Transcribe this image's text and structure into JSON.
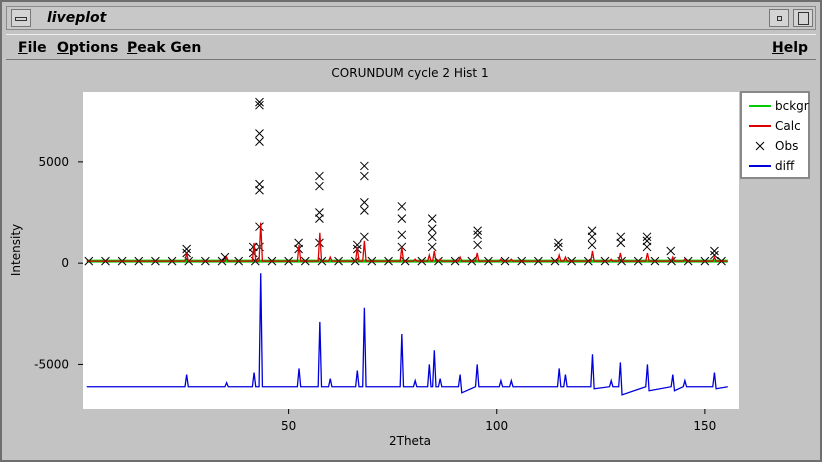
{
  "window": {
    "title": "liveplot"
  },
  "menu": {
    "left": [
      "File",
      "Options",
      "Peak Gen"
    ],
    "right": [
      "Help"
    ]
  },
  "chart_data": {
    "type": "line",
    "title": "CORUNDUM cycle 2 Hist 1",
    "x_label": "2Theta",
    "y_label": "Intensity",
    "xlim": [
      0.6,
      158.2
    ],
    "ylim": [
      -7200,
      8450
    ],
    "xticks": [
      50,
      100,
      150
    ],
    "yticks": [
      -5000,
      0,
      5000
    ],
    "legend": "right",
    "series": [
      {
        "name": "bckgr",
        "color": "#00cc00",
        "x": [
          1.5,
          155.5
        ],
        "values": [
          100,
          100
        ]
      },
      {
        "name": "Calc",
        "color": "#dd0000",
        "x": [
          1.5,
          25.1,
          25.5,
          25.9,
          34.7,
          35.1,
          35.5,
          41.3,
          41.7,
          42.1,
          42.9,
          43.3,
          43.7,
          52.1,
          52.5,
          52.9,
          57.1,
          57.5,
          57.9,
          59.6,
          60,
          60.4,
          66.1,
          66.5,
          66.9,
          67.8,
          68.2,
          68.6,
          76.8,
          77.2,
          77.6,
          80,
          80.4,
          80.8,
          83.4,
          83.8,
          84.2,
          84.6,
          85,
          85.4,
          86,
          86.4,
          86.8,
          90.8,
          91.2,
          91.6,
          94.9,
          95.3,
          95.7,
          100.6,
          101,
          101.4,
          103.1,
          103.5,
          103.9,
          114.6,
          115,
          115.4,
          116.1,
          116.5,
          116.9,
          122.6,
          123,
          123.4,
          127.1,
          127.5,
          127.9,
          129.3,
          129.7,
          130.1,
          135.8,
          136.2,
          136.6,
          141.9,
          142.3,
          142.7,
          144.8,
          145.2,
          145.6,
          151.9,
          152.3,
          152.7,
          155.5
        ],
        "values": [
          100,
          100,
          500,
          100,
          100,
          300,
          100,
          100,
          1000,
          100,
          100,
          2000,
          100,
          100,
          900,
          100,
          100,
          1500,
          100,
          100,
          300,
          100,
          100,
          800,
          100,
          100,
          1100,
          100,
          100,
          800,
          100,
          100,
          200,
          100,
          100,
          400,
          100,
          100,
          600,
          100,
          100,
          200,
          100,
          100,
          300,
          100,
          100,
          500,
          100,
          100,
          200,
          100,
          100,
          200,
          100,
          100,
          400,
          100,
          100,
          300,
          100,
          100,
          600,
          100,
          100,
          200,
          100,
          100,
          500,
          100,
          100,
          500,
          100,
          100,
          300,
          100,
          100,
          200,
          100,
          100,
          300,
          100,
          100
        ]
      },
      {
        "name": "Obs",
        "color": "#000000",
        "marker": "x",
        "x": [
          2,
          6,
          10,
          14,
          18,
          22,
          26,
          30,
          34,
          38,
          42,
          46,
          50,
          54,
          58,
          62,
          66,
          70,
          74,
          78,
          82,
          86,
          90,
          94,
          98,
          102,
          106,
          110,
          114,
          118,
          122,
          126,
          130,
          134,
          138,
          142,
          146,
          150,
          154,
          25.5,
          25.5,
          34.7,
          41.5,
          41.5,
          43,
          43,
          43,
          43,
          43,
          43,
          43,
          43,
          52.4,
          52.4,
          57.4,
          57.4,
          57.4,
          57.4,
          57.4,
          66.5,
          66.5,
          68.2,
          68.2,
          68.2,
          68.2,
          68.2,
          77.2,
          77.2,
          77.2,
          77.2,
          84.5,
          84.5,
          84.5,
          84.5,
          95.4,
          95.4,
          95.4,
          114.8,
          114.8,
          122.9,
          122.9,
          122.9,
          129.8,
          129.8,
          136.1,
          136.1,
          136.1,
          141.8,
          152.3,
          152.3
        ],
        "values": [
          100,
          100,
          100,
          100,
          100,
          100,
          100,
          100,
          100,
          100,
          100,
          100,
          100,
          100,
          100,
          100,
          100,
          100,
          100,
          100,
          100,
          100,
          100,
          100,
          100,
          100,
          100,
          100,
          100,
          100,
          100,
          100,
          100,
          100,
          100,
          100,
          100,
          100,
          100,
          700,
          500,
          300,
          800,
          500,
          7950,
          7800,
          6400,
          6000,
          3900,
          3600,
          1800,
          800,
          1000,
          700,
          4300,
          3800,
          2500,
          2200,
          1000,
          900,
          700,
          4800,
          4300,
          3000,
          2600,
          1300,
          2800,
          2200,
          1400,
          800,
          2200,
          1700,
          1300,
          800,
          1600,
          1400,
          900,
          1000,
          800,
          1600,
          1300,
          900,
          1300,
          1000,
          1300,
          1100,
          800,
          600,
          600,
          400
        ]
      },
      {
        "name": "diff",
        "color": "#0000dd",
        "x": [
          1.5,
          25.1,
          25.5,
          25.9,
          34.7,
          35.1,
          35.5,
          41.3,
          41.7,
          42.1,
          42.9,
          43.3,
          43.7,
          52.1,
          52.5,
          52.9,
          57.1,
          57.5,
          57.9,
          59.6,
          60,
          60.4,
          66.1,
          66.5,
          66.9,
          67.8,
          68.2,
          68.6,
          76.8,
          77.2,
          77.6,
          80,
          80.4,
          80.8,
          83.4,
          83.8,
          84.2,
          84.6,
          85,
          85.4,
          86,
          86.4,
          86.8,
          90.8,
          91.2,
          91.6,
          94.9,
          95.3,
          95.7,
          100.6,
          101,
          101.4,
          103.1,
          103.5,
          103.9,
          114.6,
          115,
          115.4,
          116.1,
          116.5,
          116.9,
          122.6,
          123,
          123.4,
          127.1,
          127.5,
          127.9,
          129.3,
          129.7,
          130.1,
          135.8,
          136.2,
          136.6,
          141.9,
          142.3,
          142.7,
          144.8,
          145.2,
          145.6,
          151.9,
          152.3,
          152.7,
          155.5
        ],
        "values": [
          -6100,
          -6100,
          -5500,
          -6100,
          -6100,
          -5900,
          -6100,
          -6100,
          -5400,
          -6100,
          -6100,
          -500,
          -6100,
          -6100,
          -5200,
          -6100,
          -6100,
          -2900,
          -6100,
          -6100,
          -5700,
          -6100,
          -6100,
          -5300,
          -6100,
          -6100,
          -2200,
          -6100,
          -6100,
          -3500,
          -6100,
          -6100,
          -5800,
          -6100,
          -6100,
          -5000,
          -6100,
          -6100,
          -4300,
          -6100,
          -6100,
          -5700,
          -6100,
          -6100,
          -5500,
          -6400,
          -6100,
          -5000,
          -6100,
          -6100,
          -5800,
          -6100,
          -6100,
          -5800,
          -6100,
          -6100,
          -5200,
          -6100,
          -6100,
          -5500,
          -6100,
          -6100,
          -4500,
          -6200,
          -6100,
          -5800,
          -6100,
          -6100,
          -4900,
          -6500,
          -6100,
          -5000,
          -6300,
          -6100,
          -5500,
          -6300,
          -6100,
          -5800,
          -6100,
          -6100,
          -5400,
          -6200,
          -6100
        ]
      }
    ]
  }
}
